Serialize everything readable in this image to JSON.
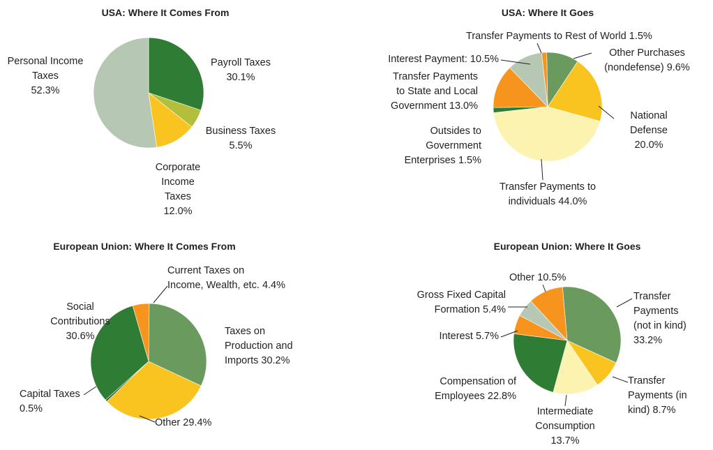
{
  "chart_data": [
    {
      "type": "pie",
      "title": "USA: Where It Comes From",
      "categories": [
        "Payroll Taxes",
        "Business Taxes",
        "Corporate Income Taxes",
        "Personal Income Taxes"
      ],
      "values": [
        30.1,
        5.5,
        12.0,
        52.3
      ],
      "value_labels": [
        "30.1%",
        "5.5%",
        "12.0%",
        "52.3%"
      ],
      "colors": [
        "#2f7d34",
        "#b3bf3a",
        "#f9c41f",
        "#b6c8b4"
      ]
    },
    {
      "type": "pie",
      "title": "USA: Where It Goes",
      "categories": [
        "Other Purchases (nondefense)",
        "National Defense",
        "Transfer Payments to individuals",
        "Outsides to Government Enterprises",
        "Transfer Payments to State and Local Government",
        "Interest Payment:",
        "Transfer Payments to Rest of World"
      ],
      "values": [
        9.6,
        20.0,
        44.0,
        1.5,
        13.0,
        10.5,
        1.5
      ],
      "value_labels": [
        "9.6%",
        "20.0%",
        "44.0%",
        "1.5%",
        "13.0%",
        "10.5%",
        "1.5%"
      ],
      "colors": [
        "#6b9a5f",
        "#f9c41f",
        "#fdf3b0",
        "#2f7d34",
        "#f7941d",
        "#b6c8b4",
        "#f7941d"
      ]
    },
    {
      "type": "pie",
      "title": "European Union: Where It Comes From",
      "categories": [
        "Current Taxes on Income, Wealth, etc.",
        "Taxes on Production and Imports",
        "Other",
        "Capital Taxes",
        "Social Contributions"
      ],
      "values": [
        4.4,
        30.2,
        29.4,
        0.5,
        30.6
      ],
      "value_labels": [
        "4.4%",
        "30.2%",
        "29.4%",
        "0.5%",
        "30.6%"
      ],
      "colors": [
        "#f7941d",
        "#6b9a5f",
        "#f9c41f",
        "#1f5a26",
        "#2f7d34"
      ]
    },
    {
      "type": "pie",
      "title": "European Union: Where It Goes",
      "categories": [
        "Transfer Payments (not in kind)",
        "Transfer Payments (in kind)",
        "Intermediate Consumption",
        "Compensation of Employees",
        "Interest",
        "Gross Fixed Capital Formation",
        "Other"
      ],
      "values": [
        33.2,
        8.7,
        13.7,
        22.8,
        5.7,
        5.4,
        10.5
      ],
      "value_labels": [
        "33.2%",
        "8.7%",
        "13.7%",
        "22.8%",
        "5.7%",
        "5.4%",
        "10.5%"
      ],
      "colors": [
        "#6b9a5f",
        "#f9c41f",
        "#fdf3b0",
        "#2f7d34",
        "#f7941d",
        "#b6c8b4",
        "#f7941d"
      ]
    }
  ]
}
